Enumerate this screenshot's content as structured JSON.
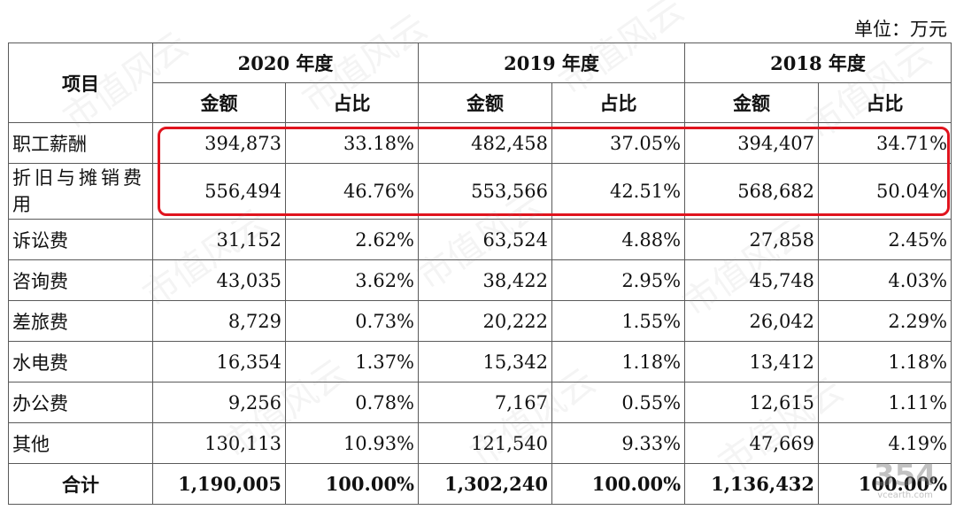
{
  "unit_label": "单位：万元",
  "header": {
    "item": "项目",
    "years": [
      "2020 年度",
      "2019 年度",
      "2018 年度"
    ],
    "amount": "金额",
    "ratio": "占比"
  },
  "rows": [
    {
      "name": "职工薪酬",
      "v": [
        "394,873",
        "33.18%",
        "482,458",
        "37.05%",
        "394,407",
        "34.71%"
      ]
    },
    {
      "name": "折旧与摊销费用",
      "v": [
        "556,494",
        "46.76%",
        "553,566",
        "42.51%",
        "568,682",
        "50.04%"
      ]
    },
    {
      "name": "诉讼费",
      "v": [
        "31,152",
        "2.62%",
        "63,524",
        "4.88%",
        "27,858",
        "2.45%"
      ]
    },
    {
      "name": "咨询费",
      "v": [
        "43,035",
        "3.62%",
        "38,422",
        "2.95%",
        "45,748",
        "4.03%"
      ]
    },
    {
      "name": "差旅费",
      "v": [
        "8,729",
        "0.73%",
        "20,222",
        "1.55%",
        "26,042",
        "2.29%"
      ]
    },
    {
      "name": "水电费",
      "v": [
        "16,354",
        "1.37%",
        "15,342",
        "1.18%",
        "13,412",
        "1.18%"
      ]
    },
    {
      "name": "办公费",
      "v": [
        "9,256",
        "0.78%",
        "7,167",
        "0.55%",
        "12,615",
        "1.11%"
      ]
    },
    {
      "name": "其他",
      "v": [
        "130,113",
        "10.93%",
        "121,540",
        "9.33%",
        "47,669",
        "4.19%"
      ]
    }
  ],
  "total": {
    "name": "合计",
    "v": [
      "1,190,005",
      "100.00%",
      "1,302,240",
      "100.00%",
      "1,136,432",
      "100.00%"
    ]
  },
  "watermark_text": "市值风云",
  "logo": {
    "big": "354",
    "small": "vcearth.com"
  }
}
